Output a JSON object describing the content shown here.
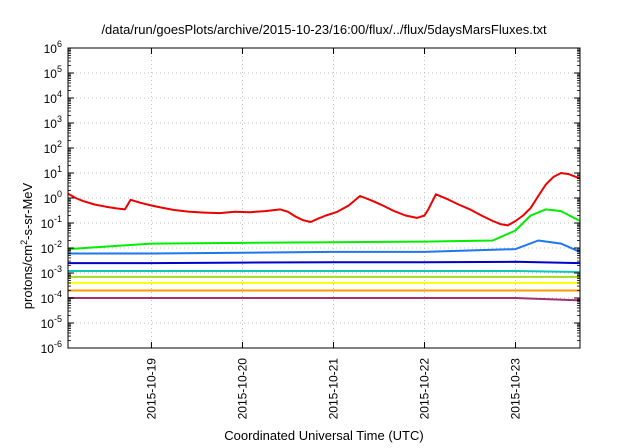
{
  "chart_data": {
    "type": "line",
    "title": "/data/run/goesPlots/archive/2015-10-23/16:00/flux/../flux/5daysMarsFluxes.txt",
    "xlabel": "Coordinated Universal Time (UTC)",
    "ylabel_parts": {
      "base": "protons/cm",
      "sup": "2",
      "rest": "-s-sr-MeV"
    },
    "y_scale": "log",
    "ylim": [
      1e-06,
      1000000.0
    ],
    "y_ticks": [
      {
        "v": 1000000.0,
        "base": "10",
        "exp": "6"
      },
      {
        "v": 100000.0,
        "base": "10",
        "exp": "5"
      },
      {
        "v": 10000.0,
        "base": "10",
        "exp": "4"
      },
      {
        "v": 1000.0,
        "base": "10",
        "exp": "3"
      },
      {
        "v": 100.0,
        "base": "10",
        "exp": "2"
      },
      {
        "v": 10.0,
        "base": "10",
        "exp": "1"
      },
      {
        "v": 1.0,
        "base": "10",
        "exp": "0"
      },
      {
        "v": 0.1,
        "base": "10",
        "exp": "-1"
      },
      {
        "v": 0.01,
        "base": "10",
        "exp": "-2"
      },
      {
        "v": 0.001,
        "base": "10",
        "exp": "-3"
      },
      {
        "v": 0.0001,
        "base": "10",
        "exp": "-4"
      },
      {
        "v": 1e-05,
        "base": "10",
        "exp": "-5"
      },
      {
        "v": 1e-06,
        "base": "10",
        "exp": "-6"
      }
    ],
    "xlim": [
      "2015-10-18 02:00",
      "2015-10-23 17:00"
    ],
    "x_ticks": [
      "2015-10-19",
      "2015-10-20",
      "2015-10-21",
      "2015-10-22",
      "2015-10-23"
    ],
    "grid": true,
    "series": [
      {
        "color": "#ee0000",
        "points": [
          [
            "2015-10-18 02:00",
            1.5
          ],
          [
            "2015-10-18 04:00",
            1.0
          ],
          [
            "2015-10-18 06:00",
            0.75
          ],
          [
            "2015-10-18 09:00",
            0.55
          ],
          [
            "2015-10-18 12:00",
            0.45
          ],
          [
            "2015-10-18 15:00",
            0.38
          ],
          [
            "2015-10-18 17:00",
            0.35
          ],
          [
            "2015-10-18 18:30",
            0.85
          ],
          [
            "2015-10-18 21:00",
            0.65
          ],
          [
            "2015-10-19 00:00",
            0.5
          ],
          [
            "2015-10-19 03:00",
            0.4
          ],
          [
            "2015-10-19 06:00",
            0.33
          ],
          [
            "2015-10-19 10:00",
            0.28
          ],
          [
            "2015-10-19 14:00",
            0.26
          ],
          [
            "2015-10-19 18:00",
            0.25
          ],
          [
            "2015-10-19 22:00",
            0.28
          ],
          [
            "2015-10-20 02:00",
            0.27
          ],
          [
            "2015-10-20 06:00",
            0.3
          ],
          [
            "2015-10-20 10:00",
            0.35
          ],
          [
            "2015-10-20 12:00",
            0.28
          ],
          [
            "2015-10-20 14:00",
            0.18
          ],
          [
            "2015-10-20 16:00",
            0.13
          ],
          [
            "2015-10-20 18:00",
            0.11
          ],
          [
            "2015-10-20 20:00",
            0.15
          ],
          [
            "2015-10-20 22:00",
            0.2
          ],
          [
            "2015-10-21 01:00",
            0.28
          ],
          [
            "2015-10-21 04:00",
            0.5
          ],
          [
            "2015-10-21 07:00",
            1.2
          ],
          [
            "2015-10-21 10:00",
            0.8
          ],
          [
            "2015-10-21 13:00",
            0.5
          ],
          [
            "2015-10-21 16:00",
            0.3
          ],
          [
            "2015-10-21 19:00",
            0.2
          ],
          [
            "2015-10-21 22:00",
            0.16
          ],
          [
            "2015-10-22 00:00",
            0.2
          ],
          [
            "2015-10-22 01:00",
            0.35
          ],
          [
            "2015-10-22 03:00",
            1.4
          ],
          [
            "2015-10-22 06:00",
            0.9
          ],
          [
            "2015-10-22 09:00",
            0.55
          ],
          [
            "2015-10-22 12:00",
            0.35
          ],
          [
            "2015-10-22 15:00",
            0.2
          ],
          [
            "2015-10-22 18:00",
            0.12
          ],
          [
            "2015-10-22 20:00",
            0.09
          ],
          [
            "2015-10-22 22:00",
            0.08
          ],
          [
            "2015-10-23 00:00",
            0.12
          ],
          [
            "2015-10-23 02:00",
            0.2
          ],
          [
            "2015-10-23 04:00",
            0.4
          ],
          [
            "2015-10-23 06:00",
            1.2
          ],
          [
            "2015-10-23 08:00",
            3.5
          ],
          [
            "2015-10-23 10:00",
            7.0
          ],
          [
            "2015-10-23 12:00",
            10.0
          ],
          [
            "2015-10-23 14:00",
            9.0
          ],
          [
            "2015-10-23 17:00",
            6.0
          ]
        ]
      },
      {
        "color": "#00ee00",
        "points": [
          [
            "2015-10-18 02:00",
            0.009
          ],
          [
            "2015-10-19 00:00",
            0.015
          ],
          [
            "2015-10-20 00:00",
            0.016
          ],
          [
            "2015-10-21 00:00",
            0.017
          ],
          [
            "2015-10-22 00:00",
            0.018
          ],
          [
            "2015-10-22 18:00",
            0.02
          ],
          [
            "2015-10-23 00:00",
            0.05
          ],
          [
            "2015-10-23 04:00",
            0.2
          ],
          [
            "2015-10-23 08:00",
            0.35
          ],
          [
            "2015-10-23 12:00",
            0.3
          ],
          [
            "2015-10-23 17:00",
            0.12
          ]
        ]
      },
      {
        "color": "#1e77ee",
        "points": [
          [
            "2015-10-18 02:00",
            0.006
          ],
          [
            "2015-10-19 00:00",
            0.006
          ],
          [
            "2015-10-20 00:00",
            0.0065
          ],
          [
            "2015-10-21 00:00",
            0.007
          ],
          [
            "2015-10-22 00:00",
            0.007
          ],
          [
            "2015-10-23 00:00",
            0.009
          ],
          [
            "2015-10-23 06:00",
            0.02
          ],
          [
            "2015-10-23 12:00",
            0.015
          ],
          [
            "2015-10-23 17:00",
            0.007
          ]
        ]
      },
      {
        "color": "#0000cc",
        "points": [
          [
            "2015-10-18 02:00",
            0.0025
          ],
          [
            "2015-10-19 00:00",
            0.0025
          ],
          [
            "2015-10-20 00:00",
            0.0026
          ],
          [
            "2015-10-21 00:00",
            0.0027
          ],
          [
            "2015-10-22 00:00",
            0.0027
          ],
          [
            "2015-10-23 00:00",
            0.0028
          ],
          [
            "2015-10-23 17:00",
            0.0025
          ]
        ]
      },
      {
        "color": "#10c8b8",
        "points": [
          [
            "2015-10-18 02:00",
            0.0012
          ],
          [
            "2015-10-19 00:00",
            0.0012
          ],
          [
            "2015-10-20 00:00",
            0.0012
          ],
          [
            "2015-10-21 00:00",
            0.0012
          ],
          [
            "2015-10-22 00:00",
            0.0012
          ],
          [
            "2015-10-23 00:00",
            0.0012
          ],
          [
            "2015-10-23 17:00",
            0.0011
          ]
        ]
      },
      {
        "color": "#a8d81e",
        "points": [
          [
            "2015-10-18 02:00",
            0.0007
          ],
          [
            "2015-10-19 00:00",
            0.0007
          ],
          [
            "2015-10-20 00:00",
            0.0007
          ],
          [
            "2015-10-21 00:00",
            0.0007
          ],
          [
            "2015-10-22 00:00",
            0.0007
          ],
          [
            "2015-10-23 00:00",
            0.0007
          ],
          [
            "2015-10-23 17:00",
            0.0007
          ]
        ]
      },
      {
        "color": "#ffff00",
        "points": [
          [
            "2015-10-18 02:00",
            0.0004
          ],
          [
            "2015-10-19 00:00",
            0.0004
          ],
          [
            "2015-10-20 00:00",
            0.0004
          ],
          [
            "2015-10-21 00:00",
            0.0004
          ],
          [
            "2015-10-22 00:00",
            0.0004
          ],
          [
            "2015-10-23 00:00",
            0.0004
          ],
          [
            "2015-10-23 17:00",
            0.0004
          ]
        ]
      },
      {
        "color": "#ff9900",
        "points": [
          [
            "2015-10-18 02:00",
            0.0002
          ],
          [
            "2015-10-19 00:00",
            0.0002
          ],
          [
            "2015-10-20 00:00",
            0.0002
          ],
          [
            "2015-10-21 00:00",
            0.0002
          ],
          [
            "2015-10-22 00:00",
            0.0002
          ],
          [
            "2015-10-23 00:00",
            0.0002
          ],
          [
            "2015-10-23 17:00",
            0.0002
          ]
        ]
      },
      {
        "color": "#a0306e",
        "points": [
          [
            "2015-10-18 02:00",
            0.0001
          ],
          [
            "2015-10-19 00:00",
            0.0001
          ],
          [
            "2015-10-20 00:00",
            0.0001
          ],
          [
            "2015-10-21 00:00",
            0.0001
          ],
          [
            "2015-10-22 00:00",
            0.0001
          ],
          [
            "2015-10-23 00:00",
            0.0001
          ],
          [
            "2015-10-23 17:00",
            8e-05
          ]
        ]
      }
    ]
  }
}
